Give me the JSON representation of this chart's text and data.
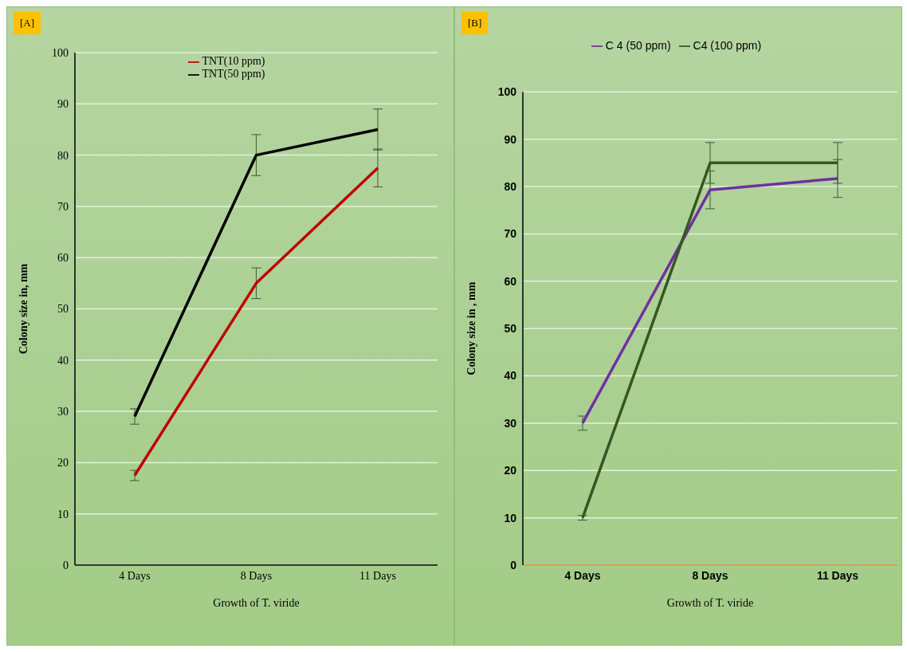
{
  "chart_data": [
    {
      "type": "line",
      "annotations": [
        "[A]"
      ],
      "xlabel": "Growth of T. viride",
      "ylabel": "Colony size in, mm",
      "categories": [
        "4 Days",
        "8 Days",
        "11 Days"
      ],
      "ylim": [
        0,
        100
      ],
      "yticks": [
        0,
        10,
        20,
        30,
        40,
        50,
        60,
        70,
        80,
        90,
        100
      ],
      "grid": "y",
      "legend": "top",
      "marker": "none",
      "line_style": "solid",
      "series": [
        {
          "name": "TNT(50 ppm)",
          "color": "#000000",
          "values": [
            29,
            80,
            85
          ],
          "errors": [
            1.5,
            4,
            4
          ]
        },
        {
          "name": "TNT(10 ppm)",
          "color": "#c00000",
          "values": [
            17.5,
            55,
            77.5
          ],
          "errors": [
            1,
            3,
            3.7
          ]
        }
      ]
    },
    {
      "type": "line",
      "annotations": [
        "[B]"
      ],
      "xlabel": "Growth of T. viride",
      "ylabel": "Colony size in , mm",
      "categories": [
        "4 Days",
        "8 Days",
        "11 Days"
      ],
      "ylim": [
        0,
        100
      ],
      "yticks": [
        0,
        10,
        20,
        30,
        40,
        50,
        60,
        70,
        80,
        90,
        100
      ],
      "grid": "y",
      "legend": "top",
      "marker": "none",
      "line_style": "solid",
      "series": [
        {
          "name": "C 4 (50 ppm)",
          "color": "#7030a0",
          "values": [
            30,
            79.3,
            81.7
          ],
          "errors": [
            1.5,
            4,
            4
          ]
        },
        {
          "name": "C4 (100 ppm)",
          "color": "#375623",
          "values": [
            10,
            85,
            85
          ],
          "errors": [
            0.5,
            4.3,
            4.3
          ]
        }
      ]
    }
  ]
}
